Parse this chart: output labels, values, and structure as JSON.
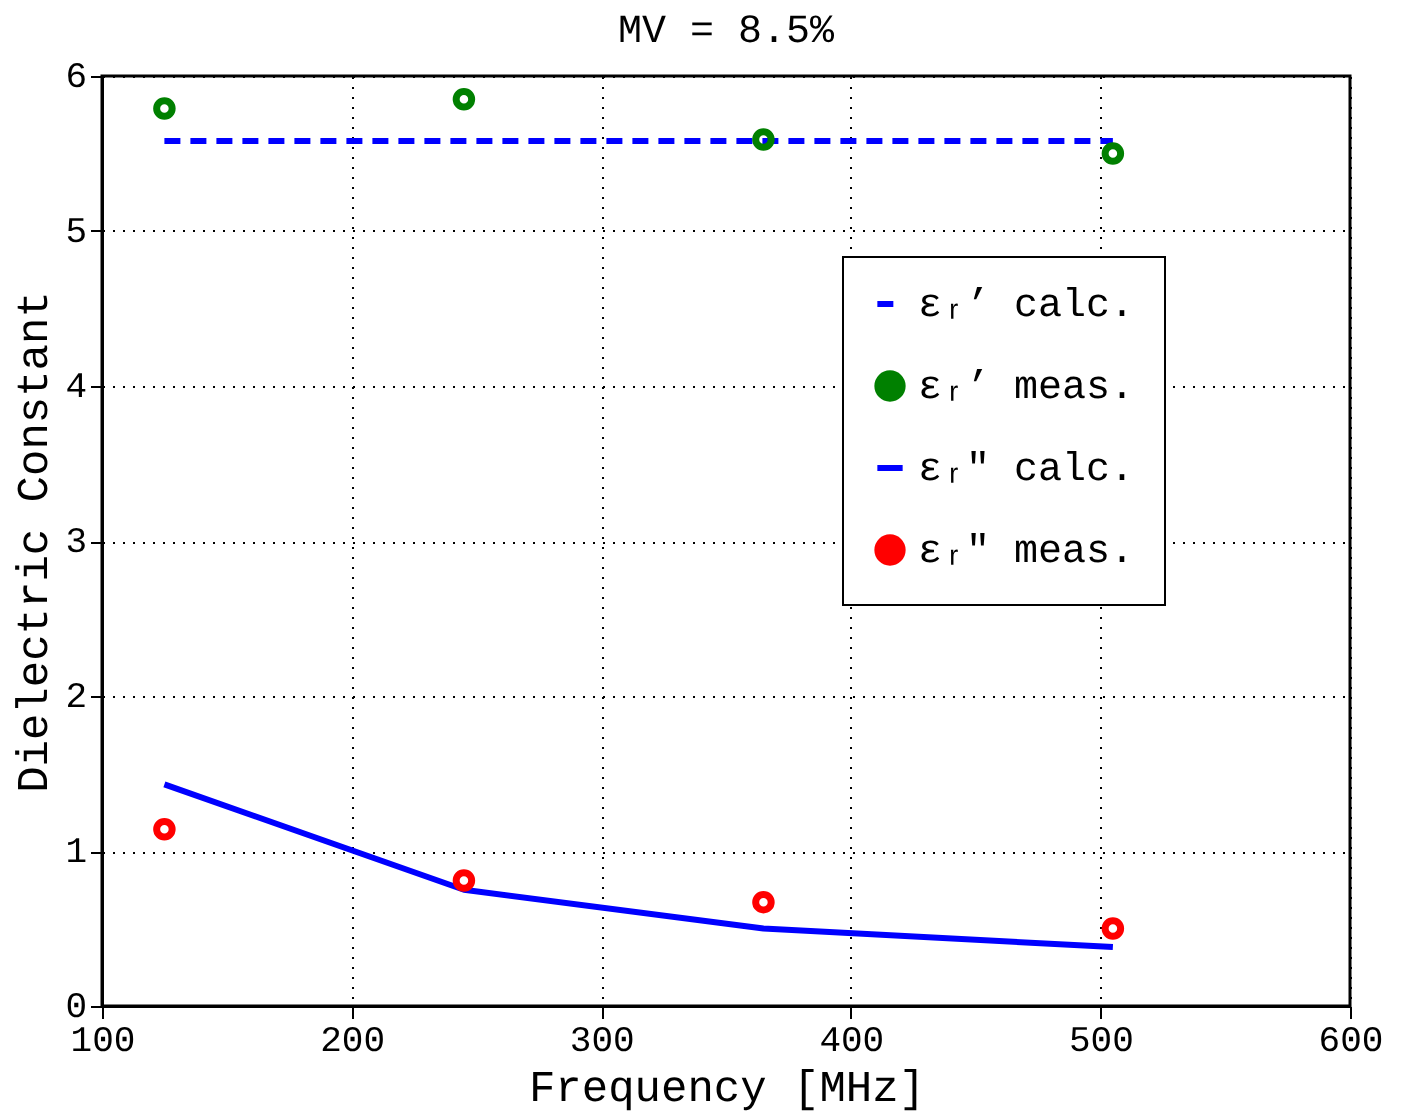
{
  "chart_data": {
    "type": "line",
    "title": "MV = 8.5%",
    "xlabel": "Frequency [MHz]",
    "ylabel": "Dielectric Constant",
    "xlim": [
      100,
      600
    ],
    "xticks": [
      100,
      200,
      300,
      400,
      500,
      600
    ],
    "ylim": [
      0,
      6
    ],
    "yticks": [
      0,
      1,
      2,
      3,
      4,
      5,
      6
    ],
    "grid": true,
    "legend": "right",
    "series": [
      {
        "name": "εᵣ’ calc.",
        "type": "line",
        "line_style": "dashed",
        "color": "#0000ff",
        "x": [
          125,
          245,
          365,
          505
        ],
        "values": [
          5.58,
          5.58,
          5.58,
          5.58
        ]
      },
      {
        "name": "εᵣ’ meas.",
        "type": "scatter",
        "marker": "circle",
        "color": "#008000",
        "x": [
          125,
          245,
          365,
          505
        ],
        "values": [
          5.79,
          5.85,
          5.59,
          5.5
        ]
      },
      {
        "name": "εᵣ\" calc.",
        "type": "line",
        "line_style": "solid",
        "color": "#0000ff",
        "x": [
          125,
          245,
          365,
          505
        ],
        "values": [
          1.43,
          0.75,
          0.5,
          0.38
        ]
      },
      {
        "name": "εᵣ\" meas.",
        "type": "scatter",
        "marker": "circle",
        "color": "#ff0000",
        "x": [
          125,
          245,
          365,
          505
        ],
        "values": [
          1.14,
          0.81,
          0.67,
          0.5
        ]
      }
    ]
  }
}
